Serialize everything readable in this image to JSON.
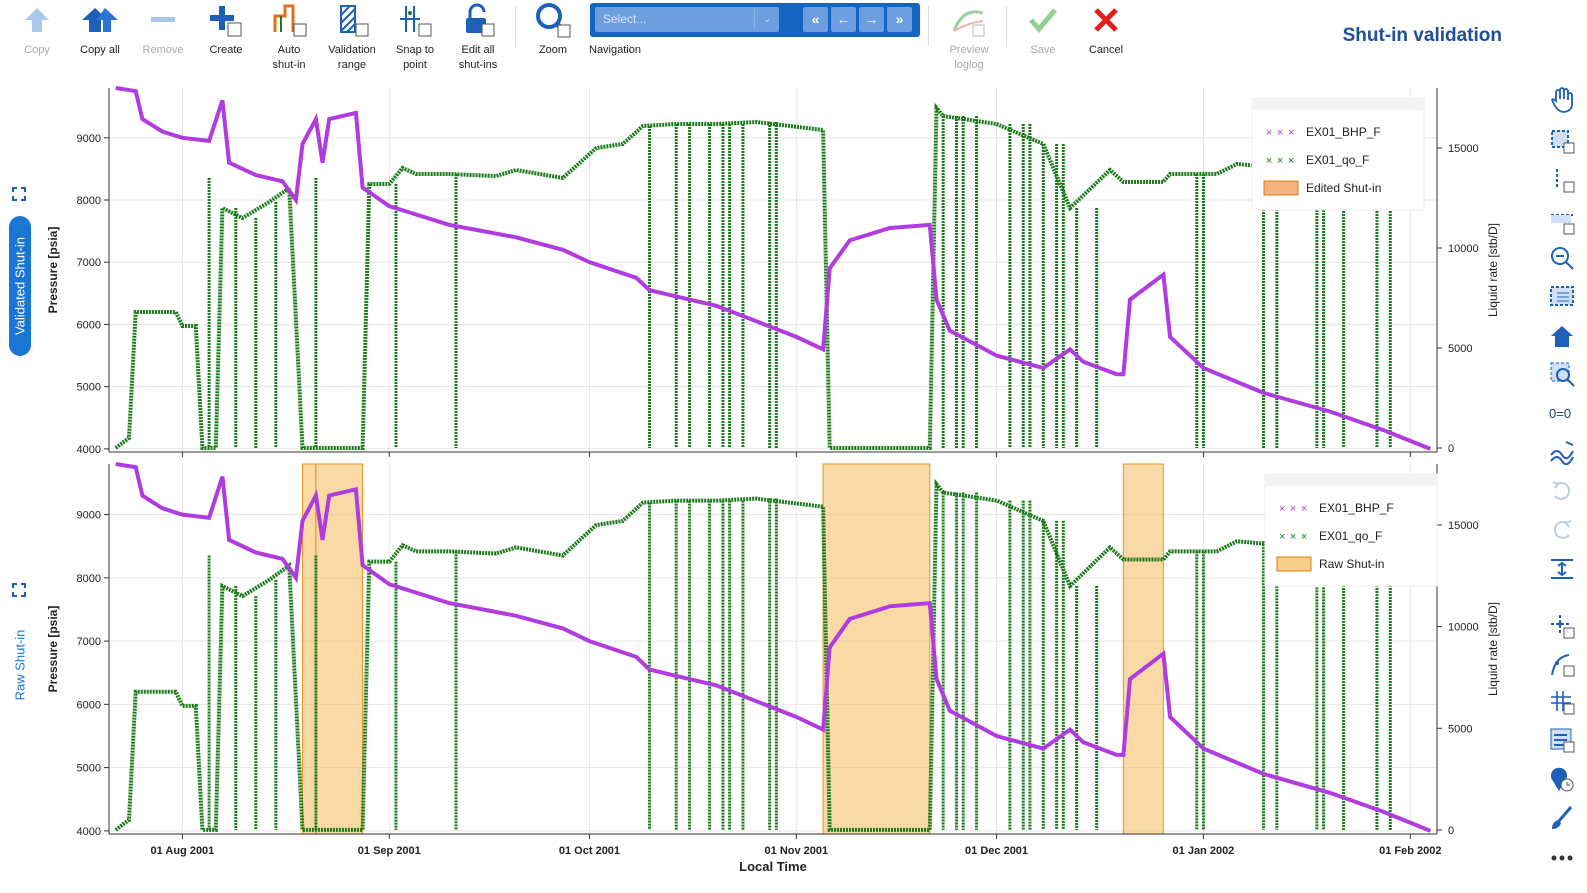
{
  "toolbar": {
    "copy": "Copy",
    "copy_all": "Copy all",
    "remove": "Remove",
    "create": "Create",
    "auto_shutin": "Auto\nshut-in",
    "validation_range": "Validation\nrange",
    "snap_to_point": "Snap to\npoint",
    "edit_all": "Edit all\nshut-ins",
    "zoom": "Zoom",
    "navigation": "Navigation",
    "nav_placeholder": "Select...",
    "preview_loglog": "Preview\nloglog",
    "save": "Save",
    "cancel": "Cancel"
  },
  "title": "Shut-in validation",
  "tabs": {
    "validated": "Validated Shut-in",
    "raw": "Raw Shut-in"
  },
  "colors": {
    "pressure": "#b03ce0",
    "rate": "#1a7a1a",
    "edited": "#f0a060",
    "raw": "#f5c26b",
    "accent": "#1565c0"
  },
  "sidebar_icons": [
    "pan-icon",
    "box-select-icon",
    "x-select-icon",
    "y-select-icon",
    "zoom-out-icon",
    "box-zoom-icon",
    "home-icon",
    "zoom-select-icon",
    "ratio-icon",
    "wave-icon",
    "undo-icon",
    "redo-icon",
    "align-icon",
    "add-point-icon",
    "curve-icon",
    "grid-icon",
    "list-icon",
    "clock-pin-icon",
    "brush-icon",
    "more-icon"
  ],
  "chart_data": [
    {
      "type": "scatter",
      "panel": "Validated Shut-in",
      "xlabel": "",
      "ylabel": "Pressure [psia]",
      "y2label": "Liquid rate [stb/D]",
      "x_ticks": [
        "01 Aug 2001",
        "01 Sep 2001",
        "01 Oct 2001",
        "01 Nov 2001",
        "01 Dec 2001",
        "01 Jan 2002",
        "01 Feb 2002"
      ],
      "y_ticks": [
        4000,
        5000,
        6000,
        7000,
        8000,
        9000
      ],
      "y2_ticks": [
        0,
        5000,
        10000,
        15000
      ],
      "ylim": [
        3950,
        9800
      ],
      "y2lim": [
        -200,
        18000
      ],
      "legend": [
        "EX01_BHP_F",
        "EX01_qo_F",
        "Edited Shut-in"
      ],
      "shutins": []
    },
    {
      "type": "scatter",
      "panel": "Raw Shut-in",
      "xlabel": "Local Time",
      "ylabel": "Pressure [psia]",
      "y2label": "Liquid rate [stb/D]",
      "x_ticks": [
        "01 Aug 2001",
        "01 Sep 2001",
        "01 Oct 2001",
        "01 Nov 2001",
        "01 Dec 2001",
        "01 Jan 2002",
        "01 Feb 2002"
      ],
      "y_ticks": [
        4000,
        5000,
        6000,
        7000,
        8000,
        9000
      ],
      "y2_ticks": [
        0,
        5000,
        10000,
        15000
      ],
      "ylim": [
        3950,
        9800
      ],
      "y2lim": [
        -200,
        18000
      ],
      "legend": [
        "EX01_BHP_F",
        "EX01_qo_F",
        "Raw Shut-in"
      ],
      "shutins": [
        [
          "2001-08-19",
          "2001-08-21"
        ],
        [
          "2001-08-21",
          "2001-08-28"
        ],
        [
          "2001-11-05",
          "2001-11-21"
        ],
        [
          "2001-12-20",
          "2001-12-26"
        ]
      ]
    }
  ],
  "series_shape": {
    "pressure": [
      [
        "2001-07-22",
        9800
      ],
      [
        "2001-07-25",
        9750
      ],
      [
        "2001-07-26",
        9300
      ],
      [
        "2001-07-29",
        9100
      ],
      [
        "2001-08-01",
        9000
      ],
      [
        "2001-08-05",
        8950
      ],
      [
        "2001-08-07",
        9600
      ],
      [
        "2001-08-08",
        8600
      ],
      [
        "2001-08-12",
        8400
      ],
      [
        "2001-08-16",
        8300
      ],
      [
        "2001-08-18",
        8000
      ],
      [
        "2001-08-19",
        8900
      ],
      [
        "2001-08-21",
        9300
      ],
      [
        "2001-08-22",
        8600
      ],
      [
        "2001-08-23",
        9300
      ],
      [
        "2001-08-27",
        9400
      ],
      [
        "2001-08-28",
        8200
      ],
      [
        "2001-09-01",
        7900
      ],
      [
        "2001-09-04",
        7800
      ],
      [
        "2001-09-10",
        7600
      ],
      [
        "2001-09-20",
        7400
      ],
      [
        "2001-09-27",
        7200
      ],
      [
        "2001-10-01",
        7000
      ],
      [
        "2001-10-08",
        6750
      ],
      [
        "2001-10-10",
        6550
      ],
      [
        "2001-10-20",
        6300
      ],
      [
        "2001-10-26",
        6050
      ],
      [
        "2001-11-01",
        5800
      ],
      [
        "2001-11-05",
        5600
      ],
      [
        "2001-11-06",
        6900
      ],
      [
        "2001-11-09",
        7350
      ],
      [
        "2001-11-15",
        7550
      ],
      [
        "2001-11-21",
        7600
      ],
      [
        "2001-11-22",
        6400
      ],
      [
        "2001-11-24",
        5900
      ],
      [
        "2001-12-01",
        5500
      ],
      [
        "2001-12-08",
        5300
      ],
      [
        "2001-12-12",
        5600
      ],
      [
        "2001-12-14",
        5400
      ],
      [
        "2001-12-19",
        5200
      ],
      [
        "2001-12-20",
        5200
      ],
      [
        "2001-12-21",
        6400
      ],
      [
        "2001-12-26",
        6800
      ],
      [
        "2001-12-27",
        5800
      ],
      [
        "2002-01-01",
        5300
      ],
      [
        "2002-01-10",
        4900
      ],
      [
        "2002-01-20",
        4600
      ],
      [
        "2002-01-28",
        4300
      ],
      [
        "2002-02-04",
        4000
      ]
    ],
    "rate": [
      [
        "2001-07-22",
        0
      ],
      [
        "2001-07-24",
        500
      ],
      [
        "2001-07-25",
        6800
      ],
      [
        "2001-07-31",
        6800
      ],
      [
        "2001-08-01",
        6100
      ],
      [
        "2001-08-03",
        6100
      ],
      [
        "2001-08-04",
        0
      ],
      [
        "2001-08-06",
        0
      ],
      [
        "2001-08-07",
        12000
      ],
      [
        "2001-08-10",
        11500
      ],
      [
        "2001-08-14",
        12300
      ],
      [
        "2001-08-17",
        13000
      ],
      [
        "2001-08-19",
        0
      ],
      [
        "2001-08-28",
        0
      ],
      [
        "2001-08-29",
        13200
      ],
      [
        "2001-09-01",
        13200
      ],
      [
        "2001-09-03",
        14000
      ],
      [
        "2001-09-05",
        13700
      ],
      [
        "2001-09-10",
        13700
      ],
      [
        "2001-09-17",
        13600
      ],
      [
        "2001-09-20",
        13900
      ],
      [
        "2001-09-27",
        13500
      ],
      [
        "2001-10-02",
        15000
      ],
      [
        "2001-10-06",
        15200
      ],
      [
        "2001-10-09",
        16100
      ],
      [
        "2001-10-14",
        16200
      ],
      [
        "2001-10-20",
        16200
      ],
      [
        "2001-10-26",
        16300
      ],
      [
        "2001-11-05",
        15900
      ],
      [
        "2001-11-06",
        0
      ],
      [
        "2001-11-21",
        0
      ],
      [
        "2001-11-22",
        17000
      ],
      [
        "2001-11-23",
        16600
      ],
      [
        "2001-12-01",
        16200
      ],
      [
        "2001-12-08",
        15200
      ],
      [
        "2001-12-12",
        12000
      ],
      [
        "2001-12-18",
        13900
      ],
      [
        "2001-12-20",
        13300
      ],
      [
        "2001-12-26",
        13300
      ],
      [
        "2001-12-27",
        13700
      ],
      [
        "2002-01-03",
        13700
      ],
      [
        "2002-01-06",
        14200
      ],
      [
        "2002-01-13",
        14000
      ],
      [
        "2002-01-20",
        15000
      ],
      [
        "2002-01-30",
        15000
      ],
      [
        "2002-02-03",
        15000
      ]
    ],
    "rate_drops": [
      "2001-08-05",
      "2001-08-09",
      "2001-08-12",
      "2001-08-15",
      "2001-08-21",
      "2001-09-02",
      "2001-09-11",
      "2001-10-10",
      "2001-10-14",
      "2001-10-16",
      "2001-10-19",
      "2001-10-21",
      "2001-10-22",
      "2001-10-24",
      "2001-10-28",
      "2001-10-29",
      "2001-11-23",
      "2001-11-25",
      "2001-11-26",
      "2001-11-28",
      "2001-12-03",
      "2001-12-05",
      "2001-12-06",
      "2001-12-08",
      "2001-12-10",
      "2001-12-11",
      "2001-12-13",
      "2001-12-16",
      "2001-12-31",
      "2002-01-01",
      "2002-01-10",
      "2002-01-12",
      "2002-01-18",
      "2002-01-19",
      "2002-01-22",
      "2002-01-27",
      "2002-01-29"
    ]
  }
}
